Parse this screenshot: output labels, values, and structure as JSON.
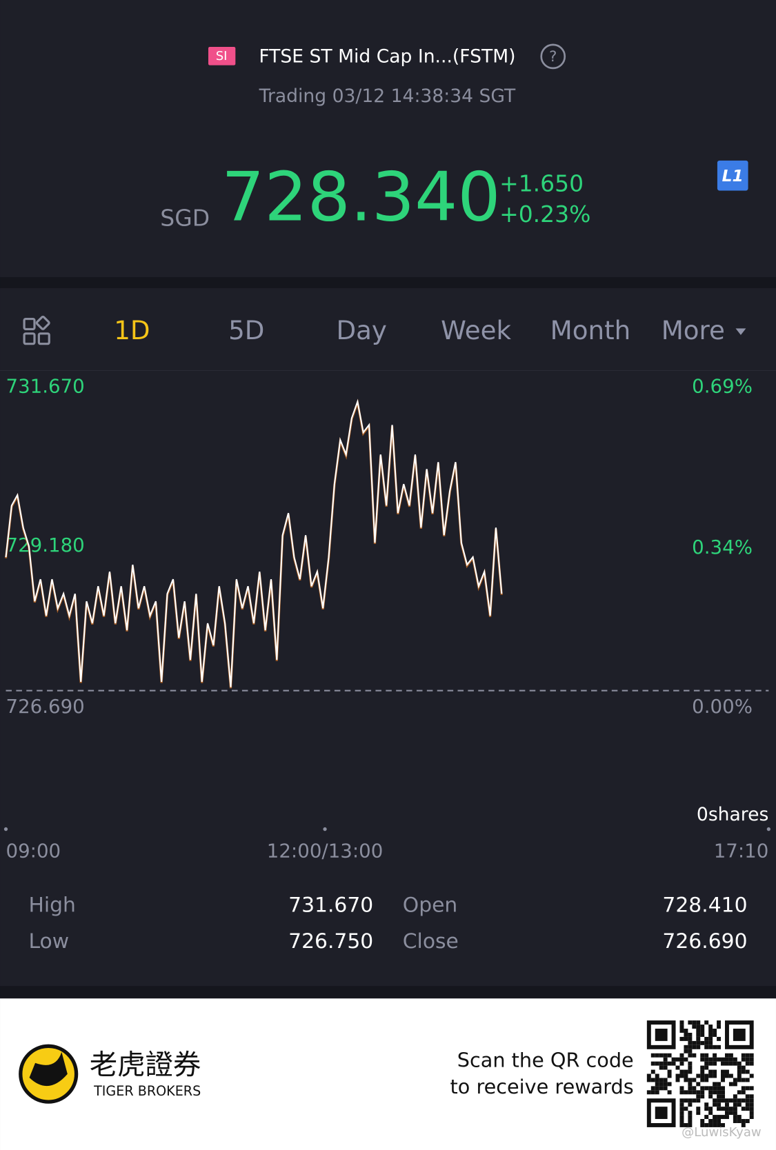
{
  "header": {
    "badge": "SI",
    "title": "FTSE ST Mid Cap In...(FSTM)",
    "status": "Trading 03/12 14:38:34 SGT"
  },
  "quote": {
    "currency": "SGD",
    "price": "728.340",
    "change": "+1.650",
    "change_pct": "+0.23%",
    "level": "L1"
  },
  "tabs": [
    "1D",
    "5D",
    "Day",
    "Week",
    "Month",
    "More"
  ],
  "chart_data": {
    "type": "line",
    "color": "#ffffff",
    "values": [
      728.99,
      729.88,
      730.06,
      729.5,
      729.18,
      728.23,
      728.61,
      727.98,
      728.61,
      728.11,
      728.36,
      727.98,
      728.36,
      726.84,
      728.23,
      727.85,
      728.49,
      727.98,
      728.74,
      727.85,
      728.49,
      727.73,
      728.86,
      728.11,
      728.49,
      727.98,
      728.23,
      726.84,
      728.36,
      728.61,
      727.6,
      728.23,
      727.22,
      728.36,
      726.84,
      727.85,
      727.47,
      728.49,
      727.85,
      726.75,
      728.61,
      728.11,
      728.49,
      727.85,
      728.74,
      727.73,
      728.61,
      727.22,
      729.37,
      729.75,
      728.99,
      728.61,
      729.37,
      728.49,
      728.74,
      728.11,
      728.99,
      730.25,
      731.01,
      730.76,
      731.39,
      731.67,
      731.14,
      731.27,
      729.24,
      730.76,
      729.88,
      731.27,
      729.75,
      730.25,
      729.88,
      730.76,
      729.5,
      730.51,
      729.75,
      730.63,
      729.37,
      730.13,
      730.63,
      729.24,
      728.86,
      728.99,
      728.49,
      728.74,
      727.98,
      729.5,
      728.36
    ],
    "ylim": [
      726.69,
      731.67
    ],
    "yticks": [
      {
        "value": 731.67,
        "label": "731.670"
      },
      {
        "value": 729.18,
        "label": "729.180"
      },
      {
        "value": 726.69,
        "label": "726.690"
      }
    ],
    "y2lim": [
      0,
      0.69
    ],
    "y2ticks": [
      {
        "value": 0.69,
        "label": "0.69%"
      },
      {
        "value": 0.34,
        "label": "0.34%"
      },
      {
        "value": 0,
        "label": "0.00%"
      }
    ],
    "xlabels": [
      "09:00",
      "12:00/13:00",
      "17:10"
    ],
    "volume": "0shares"
  },
  "stats": [
    [
      [
        "High",
        "731.670"
      ],
      [
        "Low",
        "726.750"
      ]
    ],
    [
      [
        "Open",
        "728.410"
      ],
      [
        "Close",
        "726.690"
      ]
    ]
  ],
  "footer": {
    "brand_cn": "老虎證券",
    "brand_en": "TIGER BROKERS",
    "promo": [
      "Scan the QR code",
      "to receive rewards"
    ],
    "watermark": "@LuwisKyaw"
  }
}
